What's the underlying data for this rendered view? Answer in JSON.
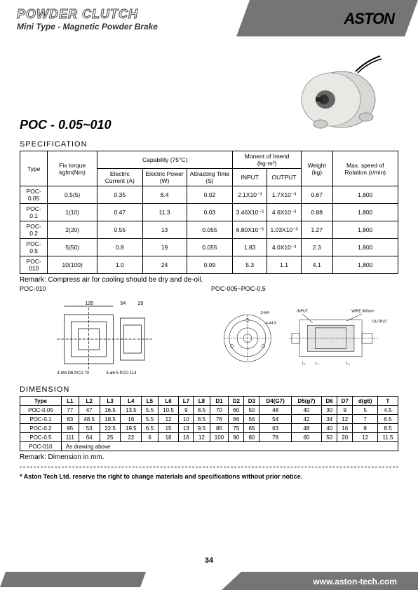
{
  "header": {
    "title": "POWDER CLUTCH",
    "subtitle": "Mini Type - Magnetic Powder Brake",
    "brand": "ASTON"
  },
  "model": "POC - 0.05~010",
  "spec": {
    "title": "SPECIFICATION",
    "columns": {
      "type": "Type",
      "fix_torque": "Fix torque kgfm(Nm)",
      "capability": "Capability (75°C)",
      "electric_current": "Electric Current (A)",
      "electric_power": "Electric Power (W)",
      "attracting_time": "Attracting Time (S)",
      "moment": "Monent of Interid (kg·m²)",
      "input": "INPUT",
      "output": "OUTPUT",
      "weight": "Weight (kg)",
      "max_speed": "Max. speed of Rotation (r/min)"
    },
    "rows": [
      {
        "type": "POC-0.05",
        "torque": "0.5(5)",
        "current": "0.35",
        "power": "8.4",
        "time": "0.02",
        "input": "2.1X10⁻³",
        "output": "1.7X10⁻³",
        "weight": "0.67",
        "speed": "1,800"
      },
      {
        "type": "POC-0.1",
        "torque": "1(10)",
        "current": "0.47",
        "power": "11.3",
        "time": "0.03",
        "input": "3.46X10⁻³",
        "output": "4.6X10⁻³",
        "weight": "0.88",
        "speed": "1,800"
      },
      {
        "type": "POC-0.2",
        "torque": "2(20)",
        "current": "0.55",
        "power": "13",
        "time": "0.055",
        "input": "6.80X10⁻³",
        "output": "1.03X10⁻³",
        "weight": "1.27",
        "speed": "1,800"
      },
      {
        "type": "POC-0.5",
        "torque": "5(50)",
        "current": "0.8",
        "power": "19",
        "time": "0.055",
        "input": "1.83",
        "output": "4.0X10⁻³",
        "weight": "2.3",
        "speed": "1,800"
      },
      {
        "type": "POC-010",
        "torque": "10(100)",
        "current": "1.0",
        "power": "24",
        "time": "0.09",
        "input": "5.3",
        "output": "1.1",
        "weight": "4.1",
        "speed": "1,800"
      }
    ],
    "remark": "Remark:  Compress air for cooling should be dry and de-oil."
  },
  "diagrams": {
    "label1": "POC-010",
    "label2": "POC-005~POC-0.5",
    "annotations": {
      "d1": "135",
      "d2": "54",
      "d3": "29",
      "d4": "24",
      "d5": "20",
      "pcd1": "4-M4 D6 PCD 70",
      "pcd2": "4-ø6.5 PCD 114",
      "m4": "3-M4",
      "o45": "4-ø4.5",
      "wire": "WIRE 300mm",
      "input": "INPUT",
      "output": "OUTPUT"
    }
  },
  "dimension": {
    "title": "DIMENSION",
    "columns": [
      "Type",
      "L1",
      "L2",
      "L3",
      "L4",
      "L5",
      "L6",
      "L7",
      "L8",
      "D1",
      "D2",
      "D3",
      "D4(G7)",
      "D5(g7)",
      "D6",
      "D7",
      "d(g6)",
      "T"
    ],
    "rows": [
      [
        "POC-0.05",
        "77",
        "47",
        "16.5",
        "13.5",
        "5.5",
        "10.5",
        "9",
        "8.5",
        "70",
        "60",
        "50",
        "48",
        "40",
        "30",
        "9",
        "5",
        "4.5"
      ],
      [
        "POC-0.1",
        "83",
        "48.5",
        "18.5",
        "16",
        "5.5",
        "12",
        "10",
        "8.5",
        "76",
        "66",
        "56",
        "54",
        "42",
        "34",
        "12",
        "7",
        "6.5"
      ],
      [
        "POC-0.2",
        "95",
        "53",
        "22.5",
        "19.5",
        "6.5",
        "15",
        "13",
        "9.5",
        "85",
        "75",
        "65",
        "63",
        "48",
        "40",
        "16",
        "9",
        "8.5"
      ],
      [
        "POC-0.5",
        "111",
        "64",
        "25",
        "22",
        "6",
        "18",
        "16",
        "12",
        "100",
        "90",
        "80",
        "78",
        "60",
        "50",
        "20",
        "12",
        "11.5"
      ]
    ],
    "last_row": {
      "type": "POC-010",
      "note": "As drawing above"
    },
    "remark": "Remark:  Dimension in mm."
  },
  "footnote": "* Aston Tech Ltd. reserve the right to change materials and specifications without prior notice.",
  "page_num": "34",
  "footer_url": "www.aston-tech.com"
}
